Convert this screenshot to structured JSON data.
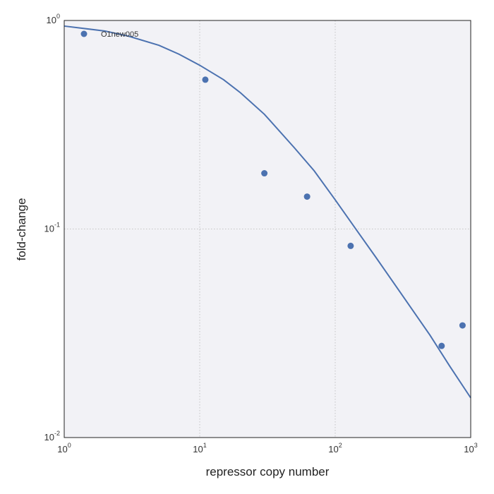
{
  "chart_data": {
    "type": "scatter",
    "title": "",
    "xlabel": "repressor copy number",
    "ylabel": "fold-change",
    "xscale": "log",
    "yscale": "log",
    "xlim": [
      1,
      1000
    ],
    "ylim": [
      0.01,
      1
    ],
    "x_ticks": [
      {
        "base": "10",
        "exp": "0",
        "value": 1
      },
      {
        "base": "10",
        "exp": "1",
        "value": 10
      },
      {
        "base": "10",
        "exp": "2",
        "value": 100
      },
      {
        "base": "10",
        "exp": "3",
        "value": 1000
      }
    ],
    "y_ticks": [
      {
        "base": "10",
        "exp": "-2",
        "value": 0.01
      },
      {
        "base": "10",
        "exp": "-1",
        "value": 0.1
      },
      {
        "base": "10",
        "exp": "0",
        "value": 1
      }
    ],
    "grid": true,
    "legend_position": "top-left",
    "series": [
      {
        "name": "O1new005",
        "kind": "scatter",
        "color": "#4c72b0",
        "points": [
          {
            "x": 11,
            "y": 0.52
          },
          {
            "x": 30,
            "y": 0.185
          },
          {
            "x": 62,
            "y": 0.143
          },
          {
            "x": 130,
            "y": 0.083
          },
          {
            "x": 610,
            "y": 0.0275
          },
          {
            "x": 870,
            "y": 0.0345
          }
        ]
      },
      {
        "kind": "line",
        "color": "#4c72b0",
        "points": [
          {
            "x": 1,
            "y": 0.94
          },
          {
            "x": 2,
            "y": 0.89
          },
          {
            "x": 3,
            "y": 0.84
          },
          {
            "x": 5,
            "y": 0.76
          },
          {
            "x": 7,
            "y": 0.69
          },
          {
            "x": 10,
            "y": 0.61
          },
          {
            "x": 15,
            "y": 0.52
          },
          {
            "x": 20,
            "y": 0.45
          },
          {
            "x": 30,
            "y": 0.355
          },
          {
            "x": 50,
            "y": 0.245
          },
          {
            "x": 70,
            "y": 0.19
          },
          {
            "x": 100,
            "y": 0.138
          },
          {
            "x": 150,
            "y": 0.095
          },
          {
            "x": 200,
            "y": 0.073
          },
          {
            "x": 300,
            "y": 0.05
          },
          {
            "x": 500,
            "y": 0.031
          },
          {
            "x": 700,
            "y": 0.022
          },
          {
            "x": 1000,
            "y": 0.0155
          }
        ]
      }
    ]
  }
}
